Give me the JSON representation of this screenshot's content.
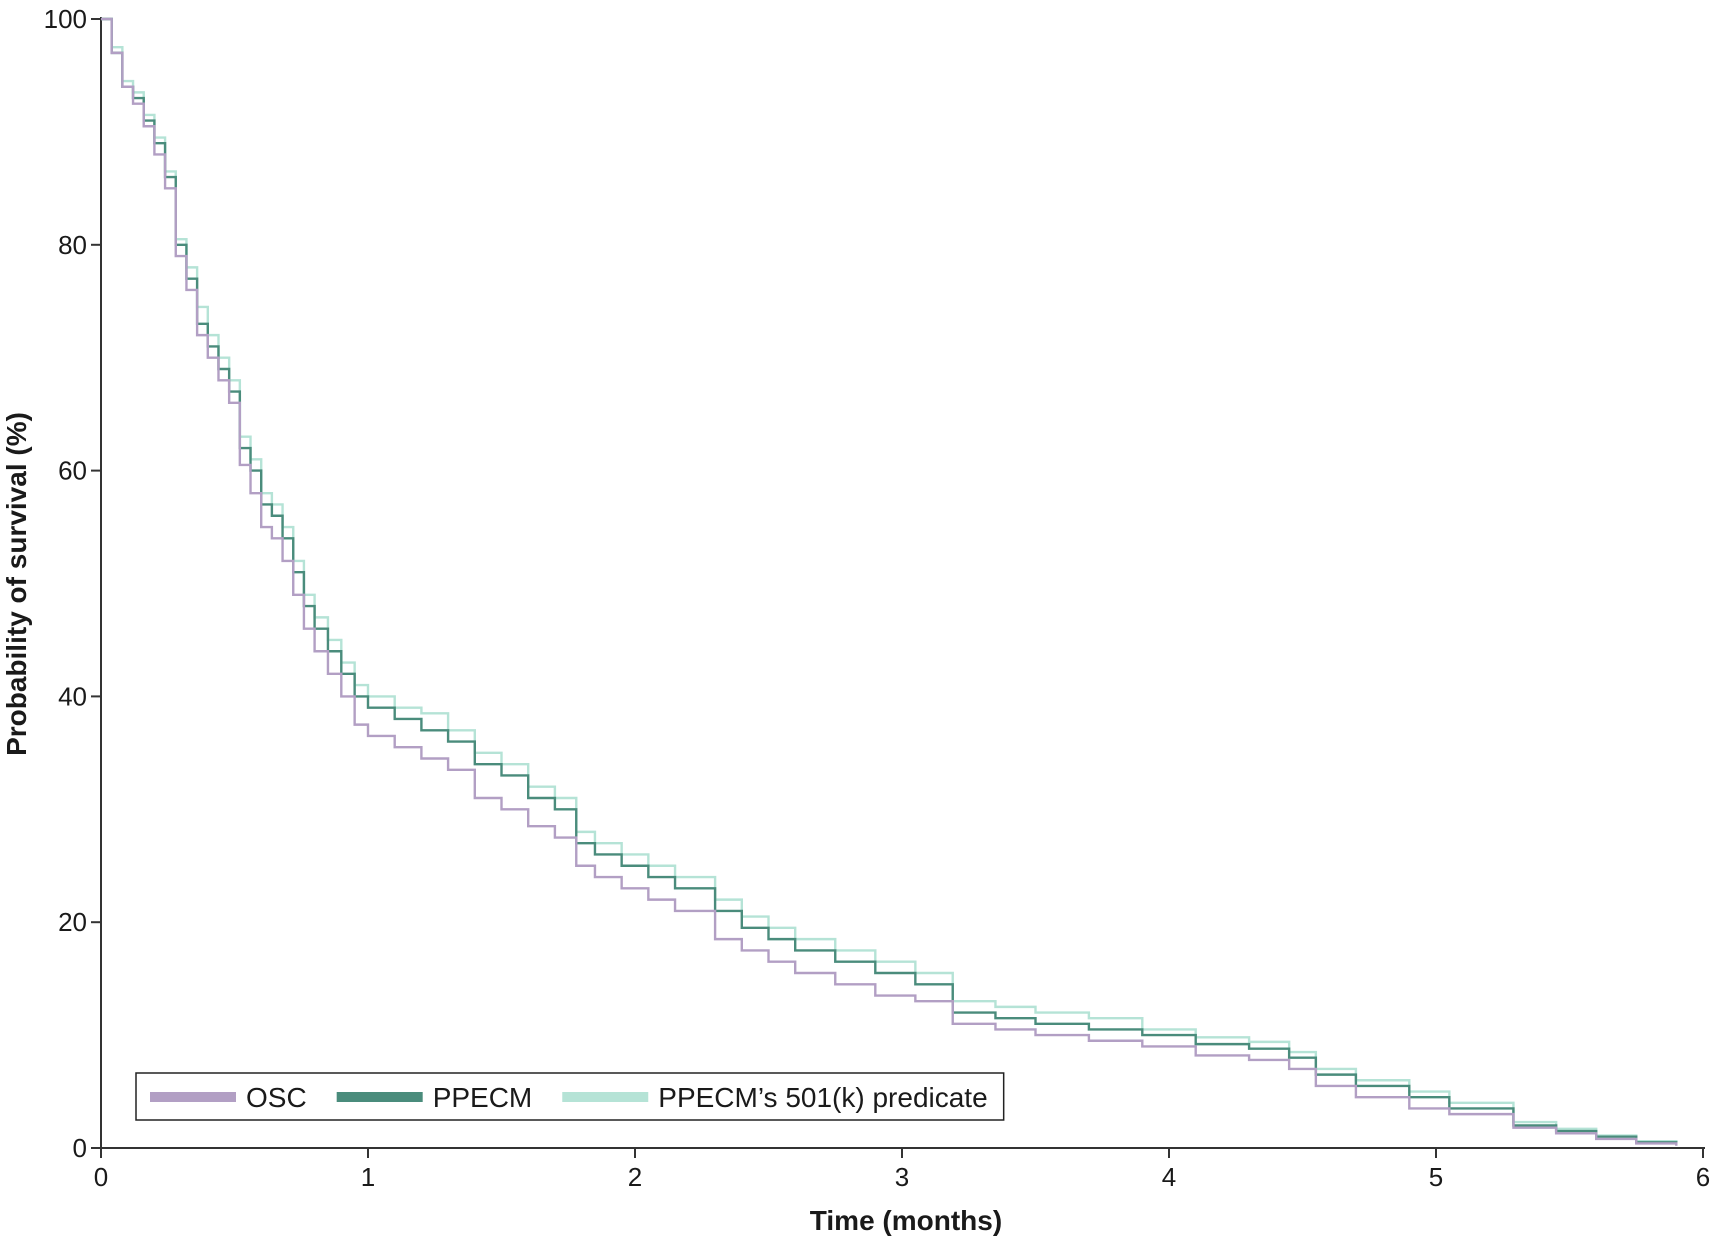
{
  "chart_data": {
    "type": "line",
    "step": "post",
    "x_label": "Time (months)",
    "y_label": "Probability of survival (%)",
    "xlim": [
      0,
      6
    ],
    "xticks": [
      0,
      1,
      2,
      3,
      4,
      5,
      6
    ],
    "ylim": [
      0,
      100
    ],
    "yticks": [
      0,
      20,
      40,
      60,
      80,
      100
    ],
    "legend": "lower left",
    "x": [
      0,
      0.04,
      0.08,
      0.12,
      0.16,
      0.2,
      0.24,
      0.28,
      0.32,
      0.36,
      0.4,
      0.44,
      0.48,
      0.52,
      0.56,
      0.6,
      0.64,
      0.68,
      0.72,
      0.76,
      0.8,
      0.85,
      0.9,
      0.95,
      1.0,
      1.1,
      1.2,
      1.3,
      1.4,
      1.5,
      1.6,
      1.7,
      1.78,
      1.85,
      1.95,
      2.05,
      2.15,
      2.3,
      2.4,
      2.5,
      2.6,
      2.75,
      2.9,
      3.05,
      3.19,
      3.35,
      3.5,
      3.7,
      3.9,
      4.1,
      4.3,
      4.45,
      4.55,
      4.7,
      4.9,
      5.05,
      5.29,
      5.45,
      5.6,
      5.75,
      5.9
    ],
    "series": [
      {
        "name": "OSC",
        "color": "#b29fc4",
        "values": [
          100,
          97,
          94,
          92.5,
          90.5,
          88,
          85,
          79,
          76,
          72,
          70,
          68,
          66,
          60.5,
          58,
          55,
          54,
          52,
          49,
          46,
          44,
          42,
          40,
          37.5,
          36.5,
          35.5,
          34.5,
          33.5,
          31,
          30,
          28.5,
          27.5,
          25,
          24,
          23,
          22,
          21,
          18.5,
          17.5,
          16.5,
          15.5,
          14.5,
          13.5,
          13,
          11,
          10.5,
          10,
          9.5,
          9,
          8.2,
          7.8,
          7,
          5.5,
          4.5,
          3.5,
          3,
          1.8,
          1.3,
          0.8,
          0.4,
          0.2
        ]
      },
      {
        "name": "PPECM",
        "color": "#4a8c7c",
        "values": [
          100,
          97,
          94,
          93,
          91,
          89,
          86,
          80,
          77,
          73,
          71,
          69,
          67,
          62,
          60,
          57,
          56,
          54,
          51,
          48,
          46,
          44,
          42,
          40,
          39,
          38,
          37,
          36,
          34,
          33,
          31,
          30,
          27,
          26,
          25,
          24,
          23,
          21,
          19.5,
          18.5,
          17.5,
          16.5,
          15.5,
          14.5,
          12,
          11.5,
          11,
          10.5,
          10,
          9.2,
          8.8,
          8,
          6.5,
          5.5,
          4.5,
          3.5,
          2,
          1.5,
          1,
          0.5,
          0.3
        ]
      },
      {
        "name": "PPECM’s 501(k) predicate",
        "color": "#b5e3d6",
        "values": [
          100,
          97.5,
          94.5,
          93.5,
          91.5,
          89.5,
          86.5,
          80.5,
          78,
          74.5,
          72,
          70,
          68,
          63,
          61,
          58,
          57,
          55,
          52,
          49,
          47,
          45,
          43,
          41,
          40,
          39,
          38.5,
          37,
          35,
          34,
          32,
          31,
          28,
          27,
          26,
          25,
          24,
          22,
          20.5,
          19.5,
          18.5,
          17.5,
          16.5,
          15.5,
          13,
          12.5,
          12,
          11.5,
          10.5,
          9.8,
          9.4,
          8.5,
          7,
          6,
          5,
          4,
          2.3,
          1.7,
          1.1,
          0.6,
          0.3
        ]
      }
    ]
  }
}
